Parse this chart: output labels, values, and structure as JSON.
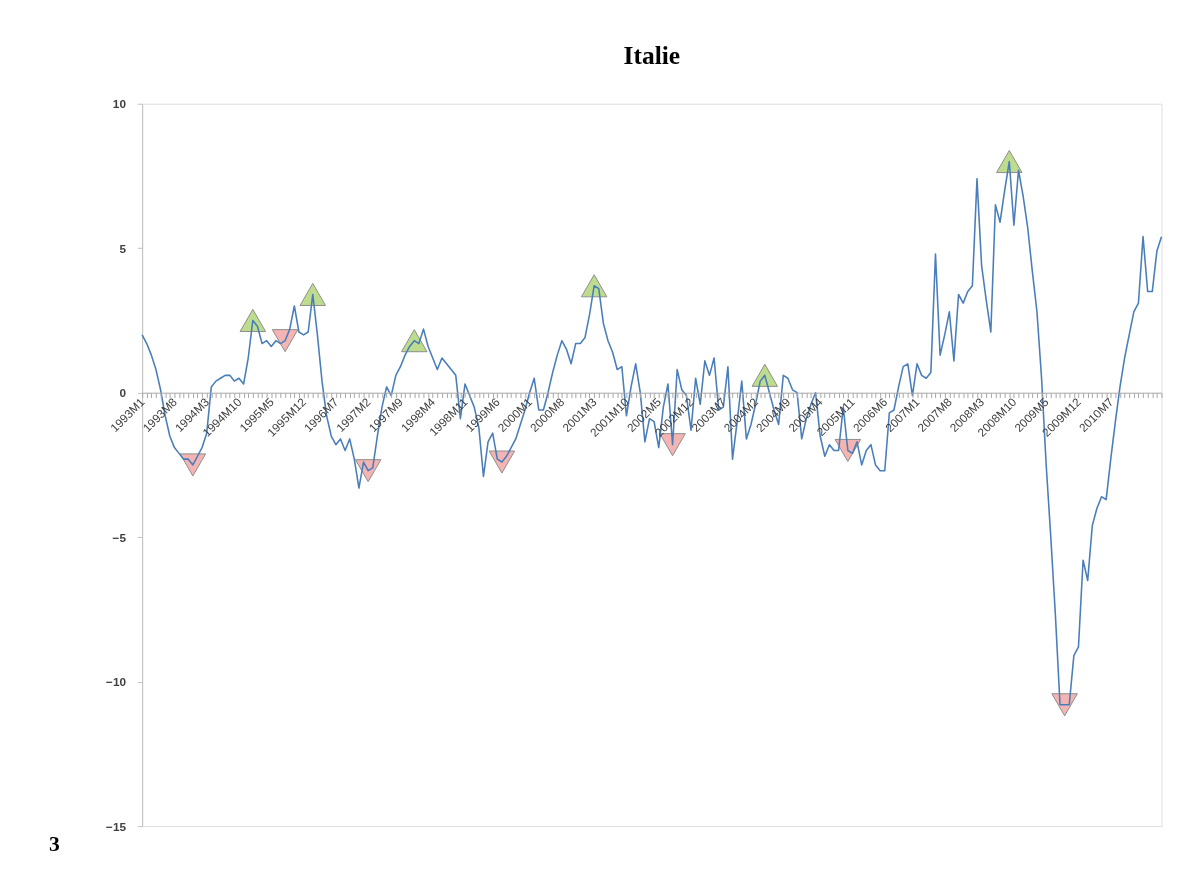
{
  "chart_data": {
    "type": "line",
    "title": "Italie",
    "categories": [
      "1993M1",
      null,
      null,
      null,
      null,
      null,
      null,
      "1993M8",
      null,
      null,
      null,
      null,
      null,
      null,
      "1994M3",
      null,
      null,
      null,
      null,
      null,
      null,
      "1994M10",
      null,
      null,
      null,
      null,
      null,
      null,
      "1995M5",
      null,
      null,
      null,
      null,
      null,
      null,
      "1995M12",
      null,
      null,
      null,
      null,
      null,
      null,
      "1996M7",
      null,
      null,
      null,
      null,
      null,
      null,
      "1997M2",
      null,
      null,
      null,
      null,
      null,
      null,
      "1997M9",
      null,
      null,
      null,
      null,
      null,
      null,
      "1998M4",
      null,
      null,
      null,
      null,
      null,
      null,
      "1998M11",
      null,
      null,
      null,
      null,
      null,
      null,
      "1999M6",
      null,
      null,
      null,
      null,
      null,
      null,
      "2000M1",
      null,
      null,
      null,
      null,
      null,
      null,
      "2000M8",
      null,
      null,
      null,
      null,
      null,
      null,
      "2001M3",
      null,
      null,
      null,
      null,
      null,
      null,
      "2001M10",
      null,
      null,
      null,
      null,
      null,
      null,
      "2002M5",
      null,
      null,
      null,
      null,
      null,
      null,
      "2002M12",
      null,
      null,
      null,
      null,
      null,
      null,
      "2003M7",
      null,
      null,
      null,
      null,
      null,
      null,
      "2004M2",
      null,
      null,
      null,
      null,
      null,
      null,
      "2004M9",
      null,
      null,
      null,
      null,
      null,
      null,
      "2005M4",
      null,
      null,
      null,
      null,
      null,
      null,
      "2005M11",
      null,
      null,
      null,
      null,
      null,
      null,
      "2006M6",
      null,
      null,
      null,
      null,
      null,
      null,
      "2007M1",
      null,
      null,
      null,
      null,
      null,
      null,
      "2007M8",
      null,
      null,
      null,
      null,
      null,
      null,
      "2008M3",
      null,
      null,
      null,
      null,
      null,
      null,
      "2008M10",
      null,
      null,
      null,
      null,
      null,
      null,
      "2009M5",
      null,
      null,
      null,
      null,
      null,
      null,
      "2009M12",
      null,
      null,
      null,
      null,
      null,
      null,
      "2010M7",
      null,
      null,
      null,
      null,
      null,
      null,
      null,
      null,
      null,
      null,
      null
    ],
    "series": [
      {
        "type": "line",
        "color": "#4a7ebb",
        "line_style": "solid",
        "values": [
          2.0,
          1.7,
          1.3,
          0.8,
          0.1,
          -0.8,
          -1.5,
          -1.9,
          -2.1,
          -2.3,
          -2.3,
          -2.5,
          -2.2,
          -1.9,
          -1.4,
          0.2,
          0.4,
          0.5,
          0.6,
          0.6,
          0.4,
          0.5,
          0.3,
          1.2,
          2.5,
          2.3,
          1.7,
          1.8,
          1.6,
          1.8,
          1.7,
          1.8,
          2.2,
          3.0,
          2.1,
          2.0,
          2.1,
          3.4,
          2.0,
          0.4,
          -0.8,
          -1.5,
          -1.8,
          -1.6,
          -2.0,
          -1.6,
          -2.3,
          -3.3,
          -2.4,
          -2.7,
          -2.6,
          -1.5,
          -0.5,
          0.2,
          -0.1,
          0.6,
          0.9,
          1.3,
          1.6,
          1.8,
          1.7,
          2.2,
          1.6,
          1.2,
          0.8,
          1.2,
          1.0,
          0.8,
          0.6,
          -0.9,
          0.3,
          -0.1,
          -0.5,
          -1.2,
          -2.9,
          -1.7,
          -1.4,
          -2.3,
          -2.4,
          -2.2,
          -1.9,
          -1.6,
          -1.1,
          -0.6,
          0.0,
          0.5,
          -0.6,
          -0.6,
          0.0,
          0.7,
          1.3,
          1.8,
          1.5,
          1.0,
          1.7,
          1.7,
          1.9,
          2.7,
          3.7,
          3.6,
          2.4,
          1.8,
          1.4,
          0.8,
          0.9,
          -0.8,
          0.2,
          1.0,
          0.0,
          -1.7,
          -0.9,
          -1.0,
          -1.9,
          -0.5,
          0.3,
          -1.8,
          0.8,
          0.1,
          -0.1,
          -1.3,
          0.5,
          -0.4,
          1.1,
          0.6,
          1.2,
          -0.6,
          -0.5,
          0.9,
          -2.3,
          -1.0,
          0.4,
          -1.6,
          -1.1,
          -0.4,
          0.4,
          0.6,
          0.0,
          -0.6,
          -1.1,
          0.6,
          0.5,
          0.1,
          0.0,
          -1.6,
          -0.9,
          -0.4,
          0.0,
          -1.5,
          -2.2,
          -1.8,
          -2.0,
          -2.0,
          -0.5,
          -2.0,
          -2.1,
          -1.7,
          -2.5,
          -2.0,
          -1.8,
          -2.5,
          -2.7,
          -2.7,
          -0.7,
          -0.6,
          0.2,
          0.9,
          1.0,
          -0.1,
          1.0,
          0.6,
          0.5,
          0.7,
          4.8,
          1.3,
          2.0,
          2.8,
          1.1,
          3.4,
          3.1,
          3.5,
          3.7,
          7.4,
          4.4,
          3.2,
          2.1,
          6.5,
          5.9,
          7.0,
          8.0,
          5.8,
          7.7,
          6.8,
          5.7,
          4.2,
          2.8,
          0.5,
          -2.5,
          -5.0,
          -7.7,
          -10.8,
          -10.8,
          -10.8,
          -9.1,
          -8.8,
          -5.8,
          -6.5,
          -4.6,
          -4.0,
          -3.6,
          -3.7,
          -2.3,
          -1.0,
          0.2,
          1.2,
          2.0,
          2.8,
          3.1,
          5.4,
          3.5,
          3.5,
          4.9,
          5.4
        ]
      },
      {
        "type": "scatter",
        "color": "#b3d67a",
        "marker": "triangle",
        "values": [
          null,
          null,
          null,
          null,
          null,
          null,
          null,
          null,
          null,
          null,
          null,
          null,
          null,
          null,
          null,
          null,
          null,
          null,
          null,
          null,
          null,
          null,
          null,
          null,
          2.5,
          null,
          null,
          null,
          null,
          null,
          null,
          null,
          null,
          null,
          null,
          null,
          null,
          3.4,
          null,
          null,
          null,
          null,
          null,
          null,
          null,
          null,
          null,
          null,
          null,
          null,
          null,
          null,
          null,
          null,
          null,
          null,
          null,
          null,
          null,
          1.8,
          null,
          null,
          null,
          null,
          null,
          null,
          null,
          null,
          null,
          null,
          null,
          null,
          null,
          null,
          null,
          null,
          null,
          null,
          null,
          null,
          null,
          null,
          null,
          null,
          null,
          null,
          null,
          null,
          null,
          null,
          null,
          null,
          null,
          null,
          null,
          null,
          null,
          null,
          3.7,
          null,
          null,
          null,
          null,
          null,
          null,
          null,
          null,
          null,
          null,
          null,
          null,
          null,
          null,
          null,
          null,
          null,
          null,
          null,
          null,
          null,
          null,
          null,
          null,
          null,
          null,
          null,
          null,
          null,
          null,
          null,
          null,
          null,
          null,
          null,
          null,
          0.6,
          null,
          null,
          null,
          null,
          null,
          null,
          null,
          null,
          null,
          null,
          null,
          null,
          null,
          null,
          null,
          null,
          null,
          null,
          null,
          null,
          null,
          null,
          null,
          null,
          null,
          null,
          null,
          null,
          null,
          null,
          null,
          null,
          null,
          null,
          null,
          null,
          null,
          null,
          null,
          null,
          null,
          null,
          null,
          null,
          null,
          null,
          null,
          null,
          null,
          null,
          null,
          null,
          8.0,
          null,
          null,
          null,
          null,
          null,
          null,
          null,
          null,
          null,
          null,
          null,
          null,
          null,
          null,
          null,
          null,
          null,
          null,
          null,
          null,
          null,
          null,
          null,
          null,
          null,
          null,
          null,
          null,
          null,
          null,
          null,
          null,
          null
        ]
      },
      {
        "type": "scatter",
        "color": "#f2a7a5",
        "marker": "triangle-down",
        "values": [
          null,
          null,
          null,
          null,
          null,
          null,
          null,
          null,
          null,
          null,
          null,
          -2.5,
          null,
          null,
          null,
          null,
          null,
          null,
          null,
          null,
          null,
          null,
          null,
          null,
          null,
          null,
          null,
          null,
          null,
          null,
          null,
          1.8,
          null,
          null,
          null,
          null,
          null,
          null,
          null,
          null,
          null,
          null,
          null,
          null,
          null,
          null,
          null,
          null,
          null,
          -2.7,
          null,
          null,
          null,
          null,
          null,
          null,
          null,
          null,
          null,
          null,
          null,
          null,
          null,
          null,
          null,
          null,
          null,
          null,
          null,
          null,
          null,
          null,
          null,
          null,
          null,
          null,
          null,
          null,
          -2.4,
          null,
          null,
          null,
          null,
          null,
          null,
          null,
          null,
          null,
          null,
          null,
          null,
          null,
          null,
          null,
          null,
          null,
          null,
          null,
          null,
          null,
          null,
          null,
          null,
          null,
          null,
          null,
          null,
          null,
          null,
          null,
          null,
          null,
          null,
          null,
          null,
          -1.8,
          null,
          null,
          null,
          null,
          null,
          null,
          null,
          null,
          null,
          null,
          null,
          null,
          null,
          null,
          null,
          null,
          null,
          null,
          null,
          null,
          null,
          null,
          null,
          null,
          null,
          null,
          null,
          null,
          null,
          null,
          null,
          null,
          null,
          null,
          null,
          null,
          null,
          -2.0,
          null,
          null,
          null,
          null,
          null,
          null,
          null,
          null,
          null,
          null,
          null,
          null,
          null,
          null,
          null,
          null,
          null,
          null,
          null,
          null,
          null,
          null,
          null,
          null,
          null,
          null,
          null,
          null,
          null,
          null,
          null,
          null,
          null,
          null,
          null,
          null,
          null,
          null,
          null,
          null,
          null,
          null,
          null,
          null,
          null,
          null,
          -10.8,
          null,
          null,
          null,
          null,
          null,
          null,
          null,
          null,
          null,
          null,
          null,
          null,
          null,
          null,
          null,
          null,
          null,
          null,
          null,
          null,
          null
        ]
      }
    ],
    "ylim": [
      -15,
      10
    ],
    "yticks": [
      -15,
      -10,
      -5,
      0,
      5,
      10
    ],
    "grid": false,
    "annotations": [
      "3"
    ]
  }
}
